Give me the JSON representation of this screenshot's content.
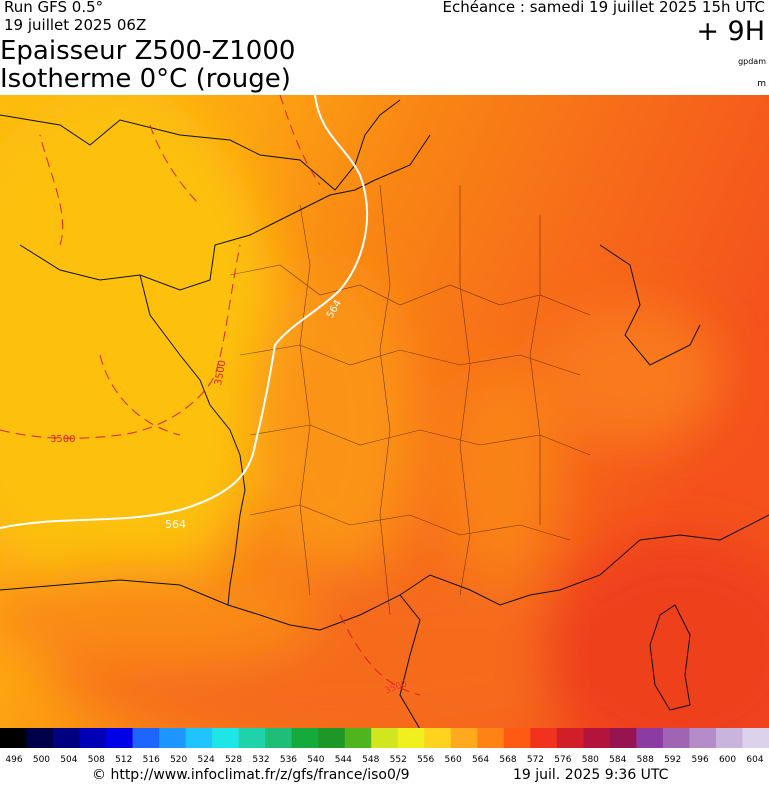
{
  "header": {
    "run": "Run GFS 0.5°",
    "run_date": "19 juillet 2025 06Z",
    "valid": "Echéance : samedi 19 juillet 2025 15h UTC",
    "lead": "+ 9H",
    "title_line1": "Epaisseur Z500-Z1000",
    "title_line2": "Isotherme 0°C (rouge)",
    "unit1": "gpdam",
    "unit2": "m"
  },
  "map": {
    "contour_labels": [
      "564",
      "564",
      "3500",
      "3500",
      "3500"
    ]
  },
  "colorbar": {
    "labels": [
      496,
      500,
      504,
      508,
      512,
      516,
      520,
      524,
      528,
      532,
      536,
      540,
      544,
      548,
      552,
      556,
      560,
      564,
      568,
      572,
      576,
      580,
      584,
      588,
      592,
      596,
      600,
      604
    ]
  },
  "footer": {
    "url": "© http://www.infoclimat.fr/z/gfs/france/iso0/9",
    "timestamp": "19 juil. 2025  9:36 UTC"
  }
}
